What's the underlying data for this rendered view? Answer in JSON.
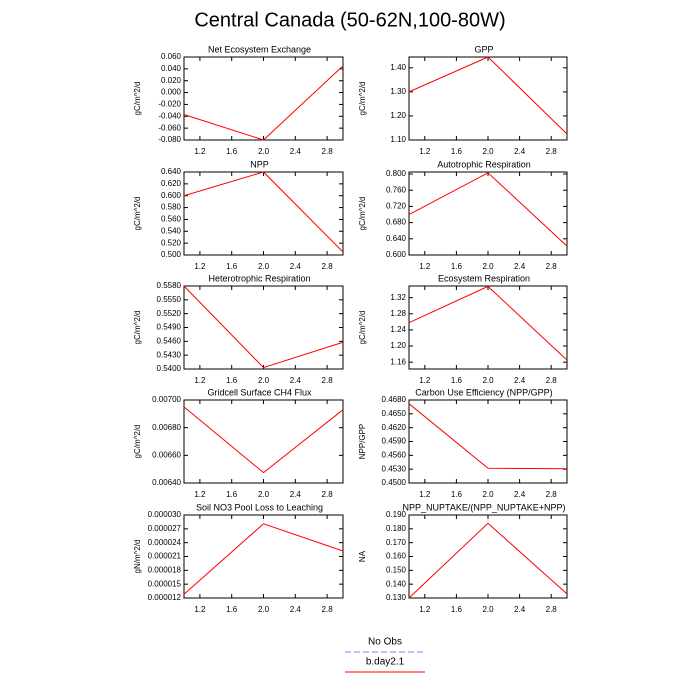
{
  "title": "Central Canada (50-62N,100-80W)",
  "legend": [
    {
      "name": "No Obs",
      "color": "#8080ff",
      "dashed": true
    },
    {
      "name": "b.day2.1",
      "color": "#ff0000",
      "dashed": false
    }
  ],
  "chart_data": [
    {
      "type": "line",
      "title": "Net Ecosystem Exchange",
      "y_label": "gC/m^2/d",
      "x": [
        1,
        2,
        3
      ],
      "values": [
        -0.037,
        -0.08,
        0.045
      ],
      "color": "#ff0000",
      "xlim": [
        1,
        3
      ],
      "xticks": [
        1.2,
        1.6,
        {
          "value": 2,
          "label": "2.0"
        },
        2.4,
        2.8
      ],
      "ylim": [
        -0.08,
        0.06
      ],
      "yticks": [
        {
          "value": -0.08,
          "label": "-0.080"
        },
        {
          "value": -0.06,
          "label": "-0.060"
        },
        {
          "value": -0.04,
          "label": "-0.040"
        },
        {
          "value": -0.02,
          "label": "-0.020"
        },
        {
          "value": 0,
          "label": "0.000"
        },
        {
          "value": 0.02,
          "label": "0.020"
        },
        {
          "value": 0.04,
          "label": "0.040"
        },
        {
          "value": 0.06,
          "label": "0.060"
        }
      ]
    },
    {
      "type": "line",
      "title": "GPP",
      "y_label": "gC/m^2/d",
      "x": [
        1,
        2,
        3
      ],
      "values": [
        1.3,
        1.445,
        1.125
      ],
      "color": "#ff0000",
      "xlim": [
        1,
        3
      ],
      "xticks": [
        1.2,
        1.6,
        {
          "value": 2,
          "label": "2.0"
        },
        2.4,
        2.8
      ],
      "ylim": [
        1.1,
        1.445
      ],
      "yticks": [
        {
          "value": 1.1,
          "label": "1.10"
        },
        {
          "value": 1.2,
          "label": "1.20"
        },
        {
          "value": 1.3,
          "label": "1.30"
        },
        {
          "value": 1.4,
          "label": "1.40"
        }
      ]
    },
    {
      "type": "line",
      "title": "NPP",
      "y_label": "gC/m^2/d",
      "x": [
        1,
        2,
        3
      ],
      "values": [
        0.6,
        0.64,
        0.505
      ],
      "color": "#ff0000",
      "xlim": [
        1,
        3
      ],
      "xticks": [
        1.2,
        1.6,
        {
          "value": 2,
          "label": "2.0"
        },
        2.4,
        2.8
      ],
      "ylim": [
        0.5,
        0.64
      ],
      "yticks": [
        {
          "value": 0.5,
          "label": "0.500"
        },
        {
          "value": 0.52,
          "label": "0.520"
        },
        {
          "value": 0.54,
          "label": "0.540"
        },
        {
          "value": 0.56,
          "label": "0.560"
        },
        {
          "value": 0.58,
          "label": "0.580"
        },
        {
          "value": 0.6,
          "label": "0.600"
        },
        {
          "value": 0.62,
          "label": "0.620"
        },
        {
          "value": 0.64,
          "label": "0.640"
        }
      ]
    },
    {
      "type": "line",
      "title": "Autotrophic Respiration",
      "y_label": "gC/m^2/d",
      "x": [
        1,
        2,
        3
      ],
      "values": [
        0.7,
        0.803,
        0.622
      ],
      "color": "#ff0000",
      "xlim": [
        1,
        3
      ],
      "xticks": [
        1.2,
        1.6,
        {
          "value": 2,
          "label": "2.0"
        },
        2.4,
        2.8
      ],
      "ylim": [
        0.6,
        0.805
      ],
      "yticks": [
        {
          "value": 0.6,
          "label": "0.600"
        },
        {
          "value": 0.64,
          "label": "0.640"
        },
        {
          "value": 0.68,
          "label": "0.680"
        },
        {
          "value": 0.72,
          "label": "0.720"
        },
        {
          "value": 0.76,
          "label": "0.760"
        },
        {
          "value": 0.8,
          "label": "0.800"
        }
      ]
    },
    {
      "type": "line",
      "title": "Heterotrophic Respiration",
      "y_label": "gC/m^2/d",
      "x": [
        1,
        2,
        3
      ],
      "values": [
        0.558,
        0.5403,
        0.5458
      ],
      "color": "#ff0000",
      "xlim": [
        1,
        3
      ],
      "xticks": [
        1.2,
        1.6,
        {
          "value": 2,
          "label": "2.0"
        },
        2.4,
        2.8
      ],
      "ylim": [
        0.54,
        0.558
      ],
      "yticks": [
        {
          "value": 0.54,
          "label": "0.5400"
        },
        {
          "value": 0.543,
          "label": "0.5430"
        },
        {
          "value": 0.546,
          "label": "0.5460"
        },
        {
          "value": 0.549,
          "label": "0.5490"
        },
        {
          "value": 0.552,
          "label": "0.5520"
        },
        {
          "value": 0.555,
          "label": "0.5550"
        },
        {
          "value": 0.558,
          "label": "0.5580"
        }
      ]
    },
    {
      "type": "line",
      "title": "Ecosystem Respiration",
      "y_label": "gC/m^2/d",
      "x": [
        1,
        2,
        3
      ],
      "values": [
        1.258,
        1.348,
        1.165
      ],
      "color": "#ff0000",
      "xlim": [
        1,
        3
      ],
      "xticks": [
        1.2,
        1.6,
        {
          "value": 2,
          "label": "2.0"
        },
        2.4,
        2.8
      ],
      "ylim": [
        1.143,
        1.349
      ],
      "yticks": [
        {
          "value": 1.16,
          "label": "1.16"
        },
        {
          "value": 1.2,
          "label": "1.20"
        },
        {
          "value": 1.24,
          "label": "1.24"
        },
        {
          "value": 1.28,
          "label": "1.28"
        },
        {
          "value": 1.32,
          "label": "1.32"
        }
      ]
    },
    {
      "type": "line",
      "title": "Gridcell Surface CH4 Flux",
      "y_label": "gC/m^2/d",
      "x": [
        1,
        2,
        3
      ],
      "values": [
        0.00695,
        0.006475,
        0.00693
      ],
      "color": "#ff0000",
      "xlim": [
        1,
        3
      ],
      "xticks": [
        1.2,
        1.6,
        {
          "value": 2,
          "label": "2.0"
        },
        2.4,
        2.8
      ],
      "ylim": [
        0.0064,
        0.007
      ],
      "yticks": [
        {
          "value": 0.0064,
          "label": "0.00640"
        },
        {
          "value": 0.0066,
          "label": "0.00660"
        },
        {
          "value": 0.0068,
          "label": "0.00680"
        },
        {
          "value": 0.007,
          "label": "0.00700"
        }
      ]
    },
    {
      "type": "line",
      "title": "Carbon Use Efficiency (NPP/GPP)",
      "y_label": "NPP/GPP",
      "x": [
        1,
        2,
        3
      ],
      "values": [
        0.4672,
        0.4532,
        0.4531
      ],
      "color": "#ff0000",
      "xlim": [
        1,
        3
      ],
      "xticks": [
        1.2,
        1.6,
        {
          "value": 2,
          "label": "2.0"
        },
        2.4,
        2.8
      ],
      "ylim": [
        0.45,
        0.468
      ],
      "yticks": [
        {
          "value": 0.45,
          "label": "0.4500"
        },
        {
          "value": 0.453,
          "label": "0.4530"
        },
        {
          "value": 0.456,
          "label": "0.4560"
        },
        {
          "value": 0.459,
          "label": "0.4590"
        },
        {
          "value": 0.462,
          "label": "0.4620"
        },
        {
          "value": 0.465,
          "label": "0.4650"
        },
        {
          "value": 0.468,
          "label": "0.4680"
        }
      ]
    },
    {
      "type": "line",
      "title": "Soil NO3 Pool Loss to Leaching",
      "y_label": "gN/m^2/d",
      "x": [
        1,
        2,
        3
      ],
      "values": [
        1.28e-05,
        2.81e-05,
        2.22e-05
      ],
      "color": "#ff0000",
      "xlim": [
        1,
        3
      ],
      "xticks": [
        1.2,
        1.6,
        {
          "value": 2,
          "label": "2.0"
        },
        2.4,
        2.8
      ],
      "ylim": [
        1.2e-05,
        3e-05
      ],
      "yticks": [
        {
          "value": 1.2e-05,
          "label": "0.000012"
        },
        {
          "value": 1.5e-05,
          "label": "0.000015"
        },
        {
          "value": 1.8e-05,
          "label": "0.000018"
        },
        {
          "value": 2.1e-05,
          "label": "0.000021"
        },
        {
          "value": 2.4e-05,
          "label": "0.000024"
        },
        {
          "value": 2.7e-05,
          "label": "0.000027"
        },
        {
          "value": 3e-05,
          "label": "0.000030"
        }
      ]
    },
    {
      "type": "line",
      "title": "NPP_NUPTAKE/(NPP_NUPTAKE+NPP)",
      "y_label": "NA",
      "x": [
        1,
        2,
        3
      ],
      "values": [
        0.13,
        0.184,
        0.133
      ],
      "color": "#ff0000",
      "xlim": [
        1,
        3
      ],
      "xticks": [
        1.2,
        1.6,
        {
          "value": 2,
          "label": "2.0"
        },
        2.4,
        2.8
      ],
      "ylim": [
        0.13,
        0.19
      ],
      "yticks": [
        {
          "value": 0.13,
          "label": "0.130"
        },
        {
          "value": 0.14,
          "label": "0.140"
        },
        {
          "value": 0.15,
          "label": "0.150"
        },
        {
          "value": 0.16,
          "label": "0.160"
        },
        {
          "value": 0.17,
          "label": "0.170"
        },
        {
          "value": 0.18,
          "label": "0.180"
        },
        {
          "value": 0.19,
          "label": "0.190"
        }
      ]
    }
  ]
}
